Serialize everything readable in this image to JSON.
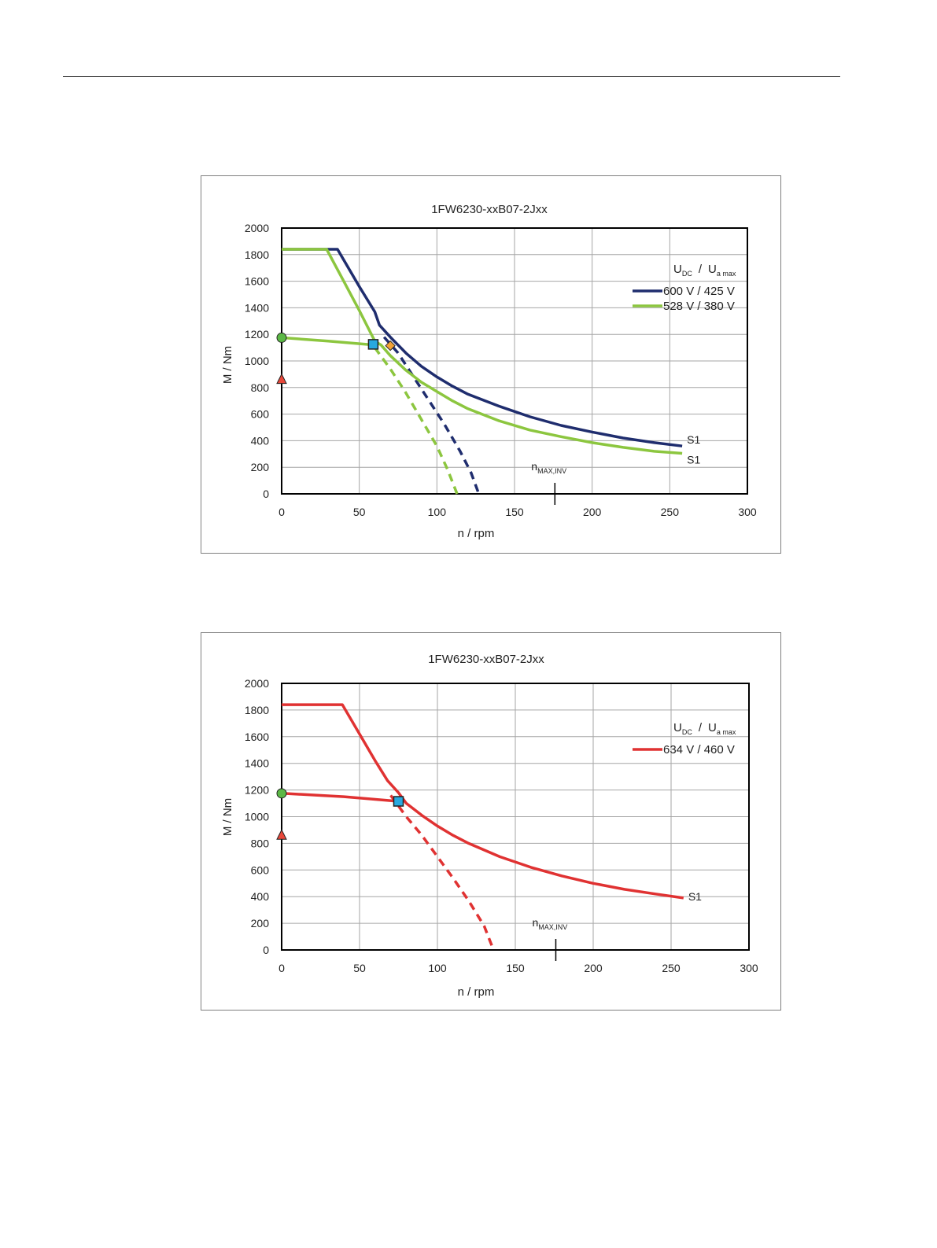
{
  "chart_data": [
    {
      "type": "line",
      "title": "1FW6230-xxB07-2Jxx",
      "xlabel": "n / rpm",
      "ylabel": "M / Nm",
      "xlim": [
        0,
        300
      ],
      "ylim": [
        0,
        2000
      ],
      "xticks": [
        0,
        50,
        100,
        150,
        200,
        250,
        300
      ],
      "yticks": [
        0,
        200,
        400,
        600,
        800,
        1000,
        1200,
        1400,
        1600,
        1800,
        2000
      ],
      "grid": true,
      "legend_position": "top-right",
      "legend_header": {
        "main1": "U",
        "sub1": "DC",
        "sep": "/",
        "main2": "U",
        "sub2": "a max"
      },
      "nmax_marker": {
        "label_main": "n",
        "label_sub": "MAX,INV",
        "x": 176
      },
      "series": [
        {
          "name": "600 V / 425 V",
          "color": "#1f2d6e",
          "style": "solid",
          "end_label": "S1",
          "x": [
            0,
            36,
            50,
            60,
            63,
            70,
            80,
            90,
            100,
            110,
            120,
            140,
            160,
            180,
            200,
            220,
            240,
            258
          ],
          "y": [
            1840,
            1840,
            1560,
            1370,
            1270,
            1180,
            1060,
            960,
            880,
            810,
            750,
            660,
            580,
            515,
            465,
            420,
            385,
            360
          ]
        },
        {
          "name": "600 V / 425 V",
          "color": "#1f2d6e",
          "style": "dashed",
          "x": [
            66,
            75,
            85,
            95,
            105,
            115,
            122,
            127
          ],
          "y": [
            1180,
            1060,
            880,
            700,
            520,
            320,
            160,
            0
          ]
        },
        {
          "name": "528 V / 380 V",
          "color": "#8cc63f",
          "style": "solid",
          "end_label": "S1",
          "x": [
            0,
            29,
            40,
            50,
            60,
            64,
            70,
            80,
            90,
            100,
            110,
            120,
            140,
            160,
            180,
            200,
            220,
            240,
            258
          ],
          "y": [
            1840,
            1840,
            1600,
            1380,
            1150,
            1120,
            1040,
            930,
            840,
            770,
            700,
            640,
            550,
            480,
            430,
            385,
            350,
            320,
            305
          ]
        },
        {
          "name": "528 V / 380 V",
          "color": "#8cc63f",
          "style": "dashed",
          "x": [
            60,
            70,
            80,
            90,
            100,
            107,
            113
          ],
          "y": [
            1100,
            940,
            760,
            560,
            360,
            180,
            0
          ]
        },
        {
          "name": "528 V / 380 V",
          "color": "#8cc63f",
          "style": "solid",
          "x": [
            0,
            30,
            60
          ],
          "y": [
            1175,
            1150,
            1120
          ]
        }
      ],
      "markers": [
        {
          "shape": "circle",
          "x": 0,
          "y": 1175,
          "color": "#5cb846"
        },
        {
          "shape": "triangle",
          "x": 0,
          "y": 860,
          "color": "#e8473a"
        },
        {
          "shape": "square",
          "x": 59,
          "y": 1125,
          "color": "#29a9e0"
        },
        {
          "shape": "diamond",
          "x": 70,
          "y": 1115,
          "color": "#f4a235"
        }
      ]
    },
    {
      "type": "line",
      "title": "1FW6230-xxB07-2Jxx",
      "xlabel": "n / rpm",
      "ylabel": "M / Nm",
      "xlim": [
        0,
        300
      ],
      "ylim": [
        0,
        2000
      ],
      "xticks": [
        0,
        50,
        100,
        150,
        200,
        250,
        300
      ],
      "yticks": [
        0,
        200,
        400,
        600,
        800,
        1000,
        1200,
        1400,
        1600,
        1800,
        2000
      ],
      "grid": true,
      "legend_position": "top-right",
      "legend_header": {
        "main1": "U",
        "sub1": "DC",
        "sep": "/",
        "main2": "U",
        "sub2": "a max"
      },
      "nmax_marker": {
        "label_main": "n",
        "label_sub": "MAX,INV",
        "x": 176
      },
      "series": [
        {
          "name": "634 V / 460 V",
          "color": "#e03232",
          "style": "solid",
          "end_label": "S1",
          "x": [
            0,
            39,
            50,
            60,
            68,
            75,
            80,
            90,
            100,
            110,
            120,
            140,
            160,
            180,
            200,
            220,
            240,
            258
          ],
          "y": [
            1840,
            1840,
            1620,
            1420,
            1270,
            1180,
            1100,
            1010,
            930,
            860,
            800,
            700,
            620,
            555,
            500,
            455,
            420,
            390
          ]
        },
        {
          "name": "634 V / 460 V",
          "color": "#e03232",
          "style": "dashed",
          "x": [
            70,
            80,
            90,
            100,
            110,
            120,
            130,
            136
          ],
          "y": [
            1160,
            1000,
            860,
            700,
            540,
            370,
            180,
            0
          ]
        },
        {
          "name": "634 V / 460 V",
          "color": "#e03232",
          "style": "solid",
          "x": [
            0,
            40,
            75
          ],
          "y": [
            1175,
            1150,
            1115
          ]
        }
      ],
      "markers": [
        {
          "shape": "circle",
          "x": 0,
          "y": 1175,
          "color": "#5cb846"
        },
        {
          "shape": "triangle",
          "x": 0,
          "y": 860,
          "color": "#e8473a"
        },
        {
          "shape": "square",
          "x": 75,
          "y": 1115,
          "color": "#29a9e0"
        }
      ]
    }
  ]
}
